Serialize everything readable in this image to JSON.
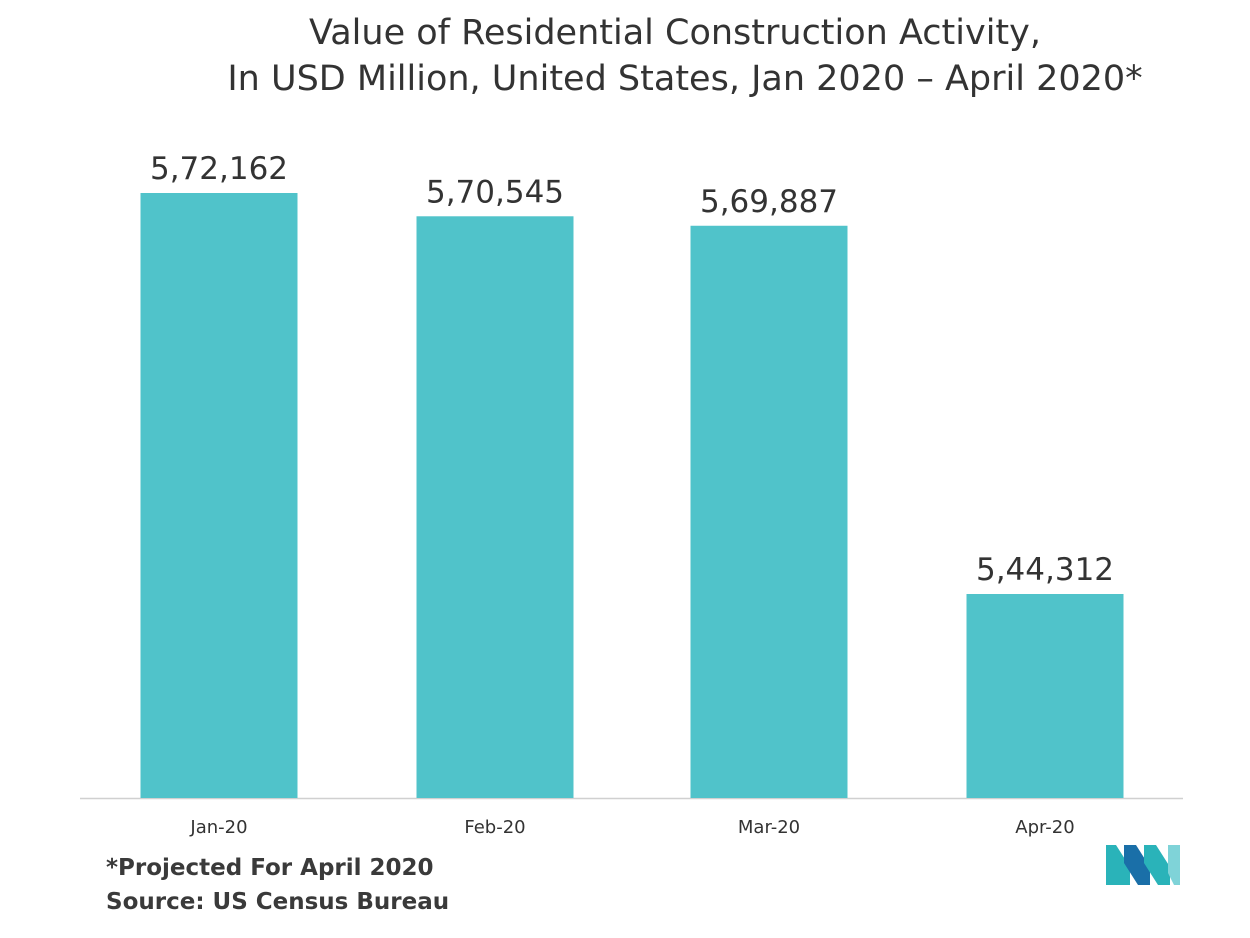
{
  "title": {
    "line1": "Value of Residential Construction Activity,",
    "line2": "In USD Million, United States, Jan 2020 – April 2020*"
  },
  "footnotes": {
    "projected": "*Projected For April 2020",
    "source": "Source: US Census Bureau"
  },
  "logo": {
    "icon": "mordor-intelligence-logo-icon",
    "colors": [
      "#2ab3b9",
      "#1a6fa8",
      "#7fd3d8"
    ]
  },
  "colors": {
    "bar": "#50c3ca",
    "axis": "#d0d0d0",
    "text": "#333333"
  },
  "chart_data": {
    "type": "bar",
    "categories": [
      "Jan-20",
      "Feb-20",
      "Mar-20",
      "Apr-20"
    ],
    "values": [
      572162,
      570545,
      569887,
      544312
    ],
    "data_labels": [
      "5,72,162",
      "5,70,545",
      "5,69,887",
      "5,44,312"
    ],
    "title": "Value of Residential Construction Activity, In USD Million, United States, Jan 2020 – April 2020*",
    "xlabel": "",
    "ylabel": "",
    "grid": false,
    "legend": "none"
  }
}
